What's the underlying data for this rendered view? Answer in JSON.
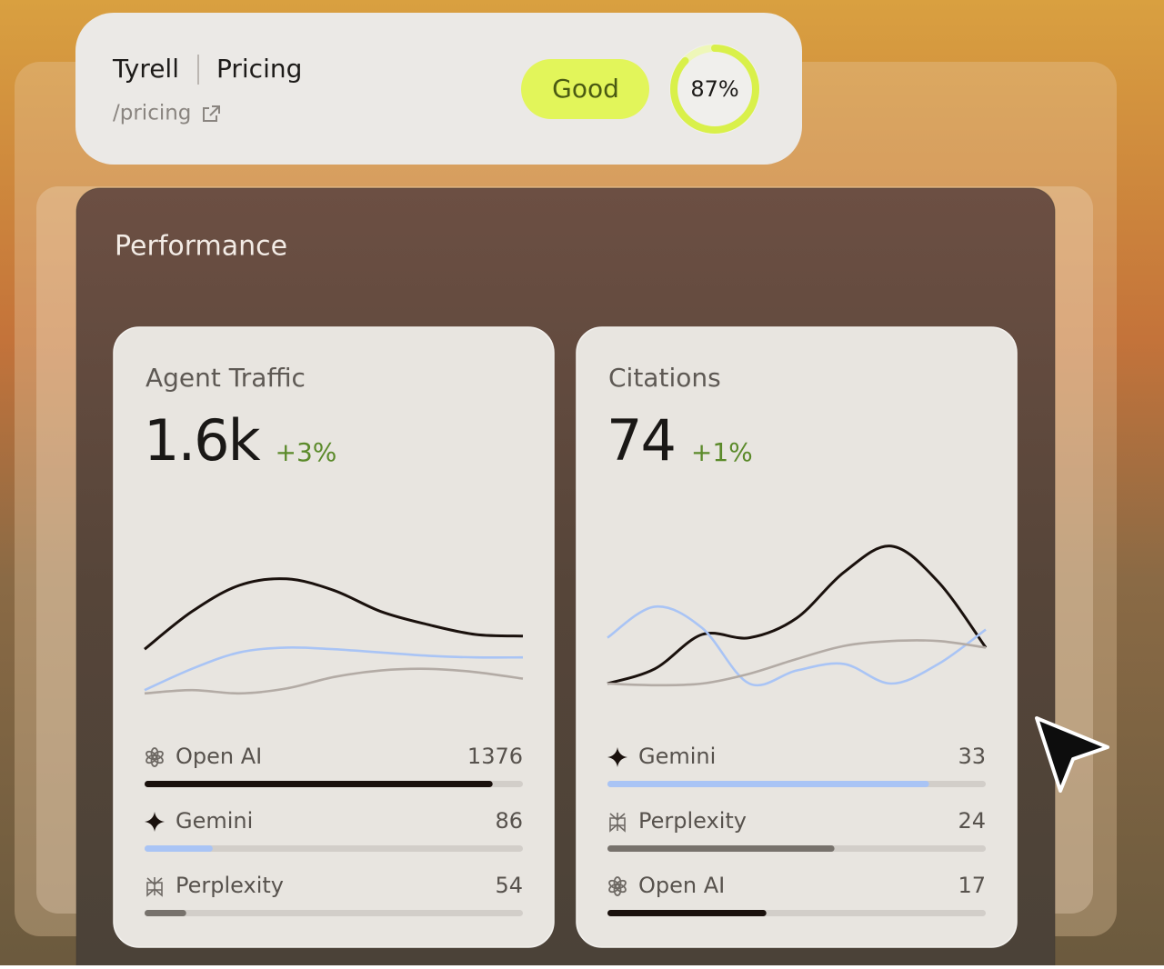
{
  "header": {
    "brand": "Tyrell",
    "page": "Pricing",
    "path": "/pricing",
    "status": "Good",
    "score": 87,
    "score_label": "87%"
  },
  "section": {
    "title": "Performance"
  },
  "cards": [
    {
      "title": "Agent Traffic",
      "value": "1.6k",
      "change": "+3%",
      "chart": {
        "type": "line",
        "ylim": [
          0,
          100
        ],
        "series": [
          {
            "color": "#1a110d",
            "values": [
              31,
              54,
              70,
              74,
              67,
              54,
              46,
              40,
              39
            ]
          },
          {
            "color": "#a9c4f5",
            "values": [
              6,
              19,
              29,
              32,
              31,
              29,
              27,
              26,
              26
            ]
          },
          {
            "color": "#b3aba5",
            "values": [
              4,
              6,
              4,
              7,
              14,
              18,
              19,
              17,
              13
            ]
          }
        ]
      },
      "sources": [
        {
          "icon": "openai",
          "name": "Open AI",
          "value": 1376,
          "bar": 92,
          "color": "#1a110d"
        },
        {
          "icon": "gemini",
          "name": "Gemini",
          "value": 86,
          "bar": 18,
          "color": "#a9c4f5"
        },
        {
          "icon": "perplexity",
          "name": "Perplexity",
          "value": 54,
          "bar": 11,
          "color": "#77726c"
        }
      ]
    },
    {
      "title": "Citations",
      "value": "74",
      "change": "+1%",
      "chart": {
        "type": "line",
        "ylim": [
          0,
          100
        ],
        "series": [
          {
            "color": "#1a110d",
            "values": [
              10,
              19,
              40,
              38,
              50,
              78,
              94,
              72,
              32
            ]
          },
          {
            "color": "#a9c4f5",
            "values": [
              38,
              57,
              44,
              10,
              18,
              22,
              10,
              22,
              43
            ]
          },
          {
            "color": "#b3aba5",
            "values": [
              10,
              9,
              10,
              16,
              25,
              33,
              36,
              36,
              32
            ]
          }
        ]
      },
      "sources": [
        {
          "icon": "gemini",
          "name": "Gemini",
          "value": 33,
          "bar": 85,
          "color": "#a9c4f5"
        },
        {
          "icon": "perplexity",
          "name": "Perplexity",
          "value": 24,
          "bar": 60,
          "color": "#77726c"
        },
        {
          "icon": "openai",
          "name": "Open AI",
          "value": 17,
          "bar": 42,
          "color": "#1a110d"
        }
      ]
    }
  ]
}
